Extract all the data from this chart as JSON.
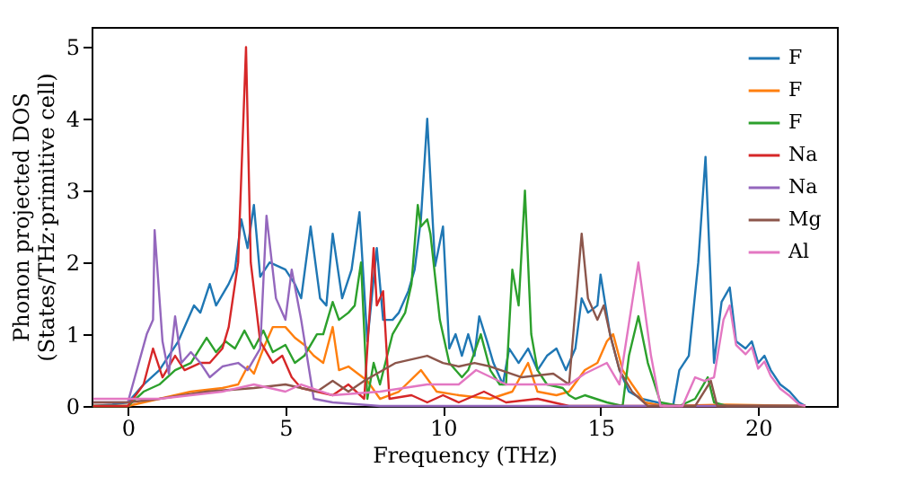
{
  "chart_data": {
    "type": "line",
    "xlabel": "Frequency (THz)",
    "ylabel": "Phonon projected DOS\n(States/THz·primitive cell)",
    "xlim": [
      -1.15,
      22.5
    ],
    "ylim": [
      0,
      5.28
    ],
    "xticks": [
      0,
      5,
      10,
      15,
      20
    ],
    "yticks": [
      0,
      1,
      2,
      3,
      4,
      5
    ],
    "grid": false,
    "legend": "top right",
    "line_style": "solid",
    "marker": "none",
    "series": [
      {
        "name": "F",
        "color": "#1f77b4",
        "x": [
          -1.1,
          -0.5,
          0,
          0.5,
          1,
          1.6,
          2.1,
          2.3,
          2.6,
          2.8,
          3.2,
          3.4,
          3.6,
          3.8,
          4.0,
          4.2,
          4.5,
          5.0,
          5.3,
          5.5,
          5.8,
          6.1,
          6.3,
          6.5,
          6.8,
          7.1,
          7.35,
          7.6,
          7.9,
          8.1,
          8.4,
          8.6,
          8.9,
          9.1,
          9.3,
          9.5,
          9.75,
          10.0,
          10.2,
          10.4,
          10.6,
          10.8,
          11.0,
          11.15,
          11.4,
          11.6,
          11.9,
          12.1,
          12.4,
          12.7,
          13.0,
          13.3,
          13.6,
          13.9,
          14.2,
          14.4,
          14.6,
          14.9,
          15.0,
          15.3,
          15.6,
          15.9,
          16.3,
          16.8,
          17.0,
          17.3,
          17.5,
          17.8,
          18.1,
          18.33,
          18.6,
          18.84,
          19.1,
          19.3,
          19.6,
          19.8,
          20.0,
          20.2,
          20.4,
          20.7,
          21.0,
          21.3,
          21.5
        ],
        "values": [
          0.0,
          0.02,
          0.05,
          0.3,
          0.5,
          0.9,
          1.4,
          1.3,
          1.7,
          1.4,
          1.7,
          1.9,
          2.6,
          2.2,
          2.8,
          1.8,
          2.0,
          1.9,
          1.7,
          1.5,
          2.5,
          1.5,
          1.4,
          2.4,
          1.5,
          1.9,
          2.7,
          0.9,
          2.2,
          1.2,
          1.2,
          1.3,
          1.6,
          1.9,
          2.6,
          4.0,
          1.95,
          2.5,
          0.8,
          1.0,
          0.7,
          1.0,
          0.7,
          1.25,
          0.9,
          0.6,
          0.3,
          0.8,
          0.6,
          0.8,
          0.5,
          0.7,
          0.8,
          0.5,
          0.8,
          1.5,
          1.3,
          1.4,
          1.83,
          1.0,
          0.5,
          0.2,
          0.1,
          0.05,
          0.0,
          0.0,
          0.5,
          0.7,
          2.0,
          3.47,
          0.6,
          1.45,
          1.65,
          0.9,
          0.8,
          0.9,
          0.6,
          0.7,
          0.5,
          0.3,
          0.2,
          0.05,
          0.0
        ]
      },
      {
        "name": "F",
        "color": "#ff7f0e",
        "x": [
          -1.1,
          0,
          0.5,
          1,
          1.5,
          2.0,
          3.0,
          3.5,
          3.8,
          4.0,
          4.3,
          4.6,
          5.0,
          5.3,
          5.6,
          5.9,
          6.2,
          6.5,
          6.7,
          7.0,
          7.3,
          7.6,
          8.0,
          8.6,
          9.3,
          9.8,
          10.5,
          11.5,
          12.2,
          12.7,
          13.0,
          13.6,
          14.0,
          14.5,
          14.9,
          15.2,
          15.4,
          15.7,
          16.0,
          16.4,
          17.0,
          19.0,
          21.5
        ],
        "values": [
          0.0,
          0.0,
          0.05,
          0.1,
          0.15,
          0.2,
          0.25,
          0.3,
          0.55,
          0.45,
          0.8,
          1.1,
          1.1,
          0.95,
          0.85,
          0.7,
          0.6,
          1.1,
          0.5,
          0.55,
          0.45,
          0.35,
          0.1,
          0.2,
          0.5,
          0.2,
          0.15,
          0.1,
          0.2,
          0.6,
          0.2,
          0.15,
          0.2,
          0.5,
          0.6,
          0.9,
          1.0,
          0.5,
          0.3,
          0.05,
          0.0,
          0.02,
          0.0
        ]
      },
      {
        "name": "F",
        "color": "#2ca02c",
        "x": [
          -1.1,
          0,
          0.5,
          1.0,
          1.5,
          2.0,
          2.5,
          2.8,
          3.1,
          3.4,
          3.7,
          4.0,
          4.3,
          4.6,
          5.0,
          5.3,
          5.6,
          6.0,
          6.2,
          6.5,
          6.7,
          7.0,
          7.2,
          7.4,
          7.6,
          7.8,
          8.0,
          8.4,
          8.8,
          9.0,
          9.2,
          9.3,
          9.5,
          9.6,
          9.9,
          10.2,
          10.6,
          10.8,
          11.2,
          11.5,
          11.8,
          12.0,
          12.2,
          12.4,
          12.6,
          12.8,
          13.0,
          13.3,
          13.8,
          14.0,
          14.2,
          14.5,
          15.2,
          15.7,
          15.9,
          16.2,
          16.5,
          16.9,
          17.5,
          18.0,
          18.4,
          18.6,
          19.0,
          21.5
        ],
        "values": [
          0.0,
          0.0,
          0.2,
          0.3,
          0.5,
          0.6,
          0.95,
          0.75,
          0.9,
          0.8,
          1.05,
          0.8,
          1.05,
          0.75,
          0.85,
          0.6,
          0.7,
          1.0,
          1.0,
          1.45,
          1.2,
          1.3,
          1.4,
          2.0,
          0.1,
          0.6,
          0.3,
          1.0,
          1.3,
          1.7,
          2.8,
          2.5,
          2.6,
          2.4,
          1.2,
          0.6,
          0.4,
          0.5,
          1.0,
          0.5,
          0.3,
          0.3,
          1.9,
          1.4,
          3.0,
          1.0,
          0.5,
          0.3,
          0.25,
          0.15,
          0.1,
          0.15,
          0.05,
          0.0,
          0.7,
          1.25,
          0.6,
          0.05,
          0.0,
          0.1,
          0.4,
          0.05,
          0.0,
          0.0
        ]
      },
      {
        "name": "Na",
        "color": "#d62728",
        "x": [
          -1.1,
          0,
          0.5,
          0.8,
          1.1,
          1.5,
          1.8,
          2.3,
          2.6,
          3.0,
          3.2,
          3.5,
          3.75,
          3.9,
          4.2,
          4.6,
          4.9,
          5.2,
          5.5,
          6.0,
          6.5,
          7.0,
          7.5,
          7.8,
          7.9,
          8.1,
          8.3,
          9.0,
          9.5,
          10.0,
          10.5,
          11.3,
          12.0,
          13.0,
          14.0,
          21.5
        ],
        "values": [
          0.0,
          0.0,
          0.3,
          0.8,
          0.4,
          0.7,
          0.5,
          0.6,
          0.6,
          0.8,
          1.1,
          2.0,
          5.0,
          2.0,
          0.9,
          0.6,
          0.7,
          0.4,
          0.25,
          0.2,
          0.15,
          0.3,
          0.1,
          2.2,
          1.4,
          1.6,
          0.1,
          0.15,
          0.05,
          0.15,
          0.05,
          0.2,
          0.05,
          0.1,
          0.0,
          0.0
        ]
      },
      {
        "name": "Na",
        "color": "#9467bd",
        "x": [
          -1.1,
          0,
          0.6,
          0.8,
          0.85,
          1.1,
          1.3,
          1.5,
          1.7,
          2.0,
          2.3,
          2.6,
          3.0,
          3.5,
          3.8,
          4.2,
          4.4,
          4.7,
          5.0,
          5.2,
          5.5,
          5.9,
          6.5,
          8.0,
          21.5
        ],
        "values": [
          0.05,
          0.05,
          1.0,
          1.2,
          2.45,
          0.9,
          0.45,
          1.25,
          0.6,
          0.75,
          0.6,
          0.4,
          0.55,
          0.6,
          0.5,
          0.8,
          2.65,
          1.5,
          1.2,
          1.9,
          1.2,
          0.1,
          0.05,
          0.0,
          0.0
        ]
      },
      {
        "name": "Mg",
        "color": "#8c564b",
        "x": [
          -1.1,
          0,
          1.0,
          2.5,
          4.0,
          5.0,
          6.0,
          6.5,
          7.0,
          7.5,
          8.5,
          9.5,
          10.0,
          10.5,
          11.0,
          11.5,
          12.5,
          13.5,
          14.0,
          14.4,
          14.6,
          14.9,
          15.1,
          15.3,
          15.6,
          16.0,
          16.5,
          18.0,
          18.5,
          18.7,
          21.5
        ],
        "values": [
          0.05,
          0.05,
          0.1,
          0.2,
          0.25,
          0.3,
          0.2,
          0.35,
          0.2,
          0.35,
          0.6,
          0.7,
          0.6,
          0.55,
          0.6,
          0.55,
          0.4,
          0.45,
          0.3,
          2.4,
          1.5,
          1.2,
          1.4,
          1.0,
          0.5,
          0.2,
          0.0,
          0.0,
          0.35,
          0.0,
          0.0
        ]
      },
      {
        "name": "Al",
        "color": "#e377c2",
        "x": [
          -1.1,
          0,
          1.0,
          2.0,
          3.0,
          4.0,
          5.0,
          5.5,
          6.5,
          8.0,
          9.5,
          10.5,
          11.05,
          12.0,
          13.0,
          14.0,
          14.5,
          15.2,
          15.6,
          16.2,
          16.6,
          16.9,
          17.6,
          18.0,
          18.3,
          18.6,
          18.9,
          19.1,
          19.3,
          19.6,
          19.8,
          20.0,
          20.2,
          20.4,
          20.7,
          21.0,
          21.3,
          21.5
        ],
        "values": [
          0.1,
          0.1,
          0.1,
          0.15,
          0.2,
          0.3,
          0.2,
          0.3,
          0.15,
          0.2,
          0.3,
          0.3,
          0.5,
          0.3,
          0.3,
          0.3,
          0.45,
          0.6,
          0.3,
          2.0,
          0.7,
          0.0,
          0.0,
          0.4,
          0.35,
          0.4,
          1.2,
          1.4,
          0.85,
          0.72,
          0.82,
          0.52,
          0.62,
          0.42,
          0.24,
          0.14,
          0.02,
          0.0
        ]
      }
    ]
  }
}
